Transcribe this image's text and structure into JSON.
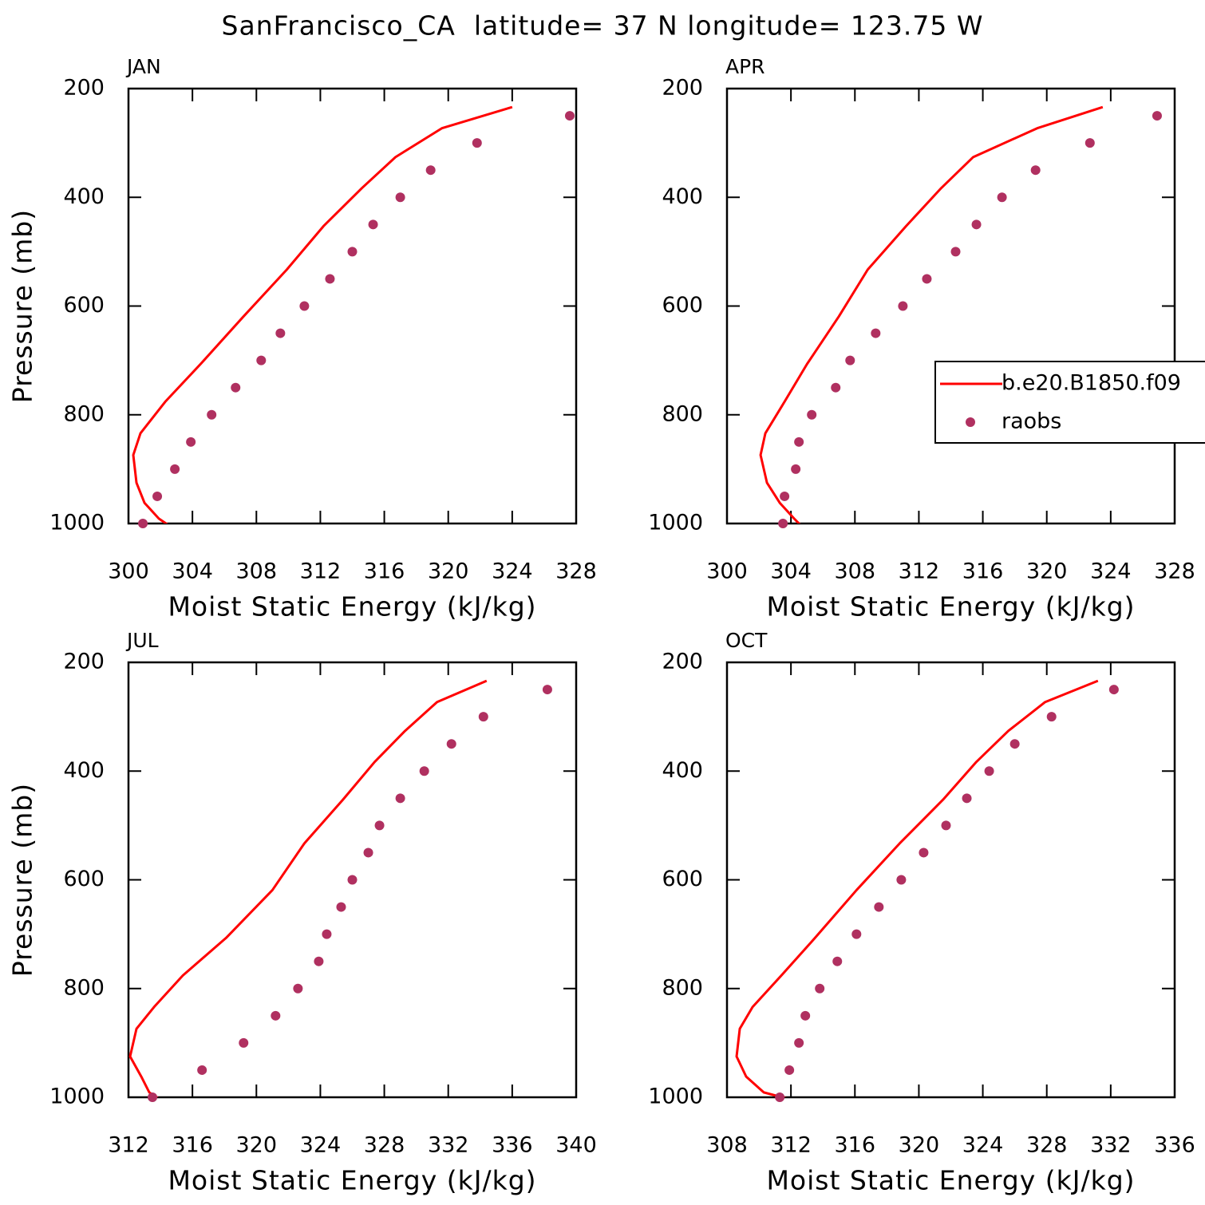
{
  "title": "SanFrancisco_CA  latitude= 37 N longitude= 123.75 W",
  "chart_data": [
    {
      "type": "line",
      "title": "JAN",
      "x_label": "Moist Static Energy (kJ/kg)",
      "y_label": "Pressure (mb)",
      "xlim": [
        300,
        328
      ],
      "xticks": [
        300,
        304,
        308,
        312,
        316,
        320,
        324,
        328
      ],
      "ylim": [
        1000,
        200
      ],
      "yticks": [
        200,
        400,
        600,
        800,
        1000
      ],
      "series": [
        {
          "name": "b.e20.B1850.f09",
          "color": "#ff0000",
          "style": "line",
          "values": [
            324.0,
            319.6,
            316.7,
            314.6,
            312.2,
            309.9,
            307.2,
            304.5,
            302.3,
            300.75,
            300.3,
            300.5,
            301.0,
            301.9,
            302.8
          ],
          "y": [
            234,
            273,
            326,
            383,
            453,
            533,
            619,
            707,
            776,
            834,
            874,
            925,
            962,
            991,
            1009
          ]
        },
        {
          "name": "raobs",
          "color": "#b03060",
          "style": "dots",
          "values": [
            327.6,
            321.8,
            318.9,
            317.0,
            315.3,
            314.0,
            312.6,
            311.0,
            309.5,
            308.3,
            306.7,
            305.2,
            303.9,
            302.9,
            301.8,
            300.9
          ],
          "y": [
            250,
            300,
            350,
            400,
            450,
            500,
            550,
            600,
            650,
            700,
            750,
            800,
            850,
            900,
            950,
            1000
          ]
        }
      ]
    },
    {
      "type": "line",
      "title": "APR",
      "x_label": "Moist Static Energy (kJ/kg)",
      "legend": "right",
      "xlim": [
        300,
        328
      ],
      "xticks": [
        300,
        304,
        308,
        312,
        316,
        320,
        324,
        328
      ],
      "ylim": [
        1000,
        200
      ],
      "yticks": [
        200,
        400,
        600,
        800,
        1000
      ],
      "series": [
        {
          "name": "b.e20.B1850.f09",
          "color": "#ff0000",
          "style": "line",
          "values": [
            323.5,
            319.4,
            315.4,
            313.4,
            311.2,
            308.8,
            307.0,
            305.0,
            303.6,
            302.4,
            302.1,
            302.5,
            303.3,
            304.2,
            304.8
          ],
          "y": [
            234,
            273,
            326,
            383,
            453,
            533,
            619,
            707,
            776,
            834,
            874,
            925,
            962,
            991,
            1009
          ]
        },
        {
          "name": "raobs",
          "color": "#b03060",
          "style": "dots",
          "values": [
            326.9,
            322.7,
            319.3,
            317.2,
            315.6,
            314.3,
            312.5,
            311.0,
            309.3,
            307.7,
            306.8,
            305.3,
            304.5,
            304.3,
            303.6,
            303.5
          ],
          "y": [
            250,
            300,
            350,
            400,
            450,
            500,
            550,
            600,
            650,
            700,
            750,
            800,
            850,
            900,
            950,
            1000
          ]
        }
      ]
    },
    {
      "type": "line",
      "title": "JUL",
      "x_label": "Moist Static Energy (kJ/kg)",
      "y_label": "Pressure (mb)",
      "xlim": [
        312,
        340
      ],
      "xticks": [
        312,
        316,
        320,
        324,
        328,
        332,
        336,
        340
      ],
      "ylim": [
        1000,
        200
      ],
      "yticks": [
        200,
        400,
        600,
        800,
        1000
      ],
      "series": [
        {
          "name": "b.e20.B1850.f09",
          "color": "#ff0000",
          "style": "line",
          "values": [
            334.4,
            331.3,
            329.3,
            327.4,
            325.4,
            323.0,
            321.0,
            318.1,
            315.4,
            313.6,
            312.5,
            312.1,
            312.8,
            313.3,
            314.2
          ],
          "y": [
            234,
            273,
            326,
            383,
            453,
            533,
            619,
            707,
            776,
            834,
            874,
            925,
            962,
            991,
            1009
          ]
        },
        {
          "name": "raobs",
          "color": "#b03060",
          "style": "dots",
          "values": [
            338.2,
            334.2,
            332.2,
            330.5,
            329.0,
            327.7,
            327.0,
            326.0,
            325.3,
            324.4,
            323.9,
            322.6,
            321.2,
            319.2,
            316.6,
            313.5
          ],
          "y": [
            250,
            300,
            350,
            400,
            450,
            500,
            550,
            600,
            650,
            700,
            750,
            800,
            850,
            900,
            950,
            1000
          ]
        }
      ]
    },
    {
      "type": "line",
      "title": "OCT",
      "x_label": "Moist Static Energy (kJ/kg)",
      "xlim": [
        308,
        336
      ],
      "xticks": [
        308,
        312,
        316,
        320,
        324,
        328,
        332,
        336
      ],
      "ylim": [
        1000,
        200
      ],
      "yticks": [
        200,
        400,
        600,
        800,
        1000
      ],
      "series": [
        {
          "name": "b.e20.B1850.f09",
          "color": "#ff0000",
          "style": "line",
          "values": [
            331.2,
            327.9,
            325.6,
            323.6,
            321.5,
            318.8,
            316.1,
            313.5,
            311.4,
            309.6,
            308.8,
            308.6,
            309.2,
            310.3,
            312.6
          ],
          "y": [
            234,
            273,
            326,
            383,
            453,
            533,
            619,
            707,
            776,
            834,
            874,
            925,
            962,
            991,
            1009
          ]
        },
        {
          "name": "raobs",
          "color": "#b03060",
          "style": "dots",
          "values": [
            332.2,
            328.3,
            326.0,
            324.4,
            323.0,
            321.7,
            320.3,
            318.9,
            317.5,
            316.1,
            314.9,
            313.8,
            312.9,
            312.5,
            311.9,
            311.3
          ],
          "y": [
            250,
            300,
            350,
            400,
            450,
            500,
            550,
            600,
            650,
            700,
            750,
            800,
            850,
            900,
            950,
            1000
          ]
        }
      ]
    }
  ]
}
